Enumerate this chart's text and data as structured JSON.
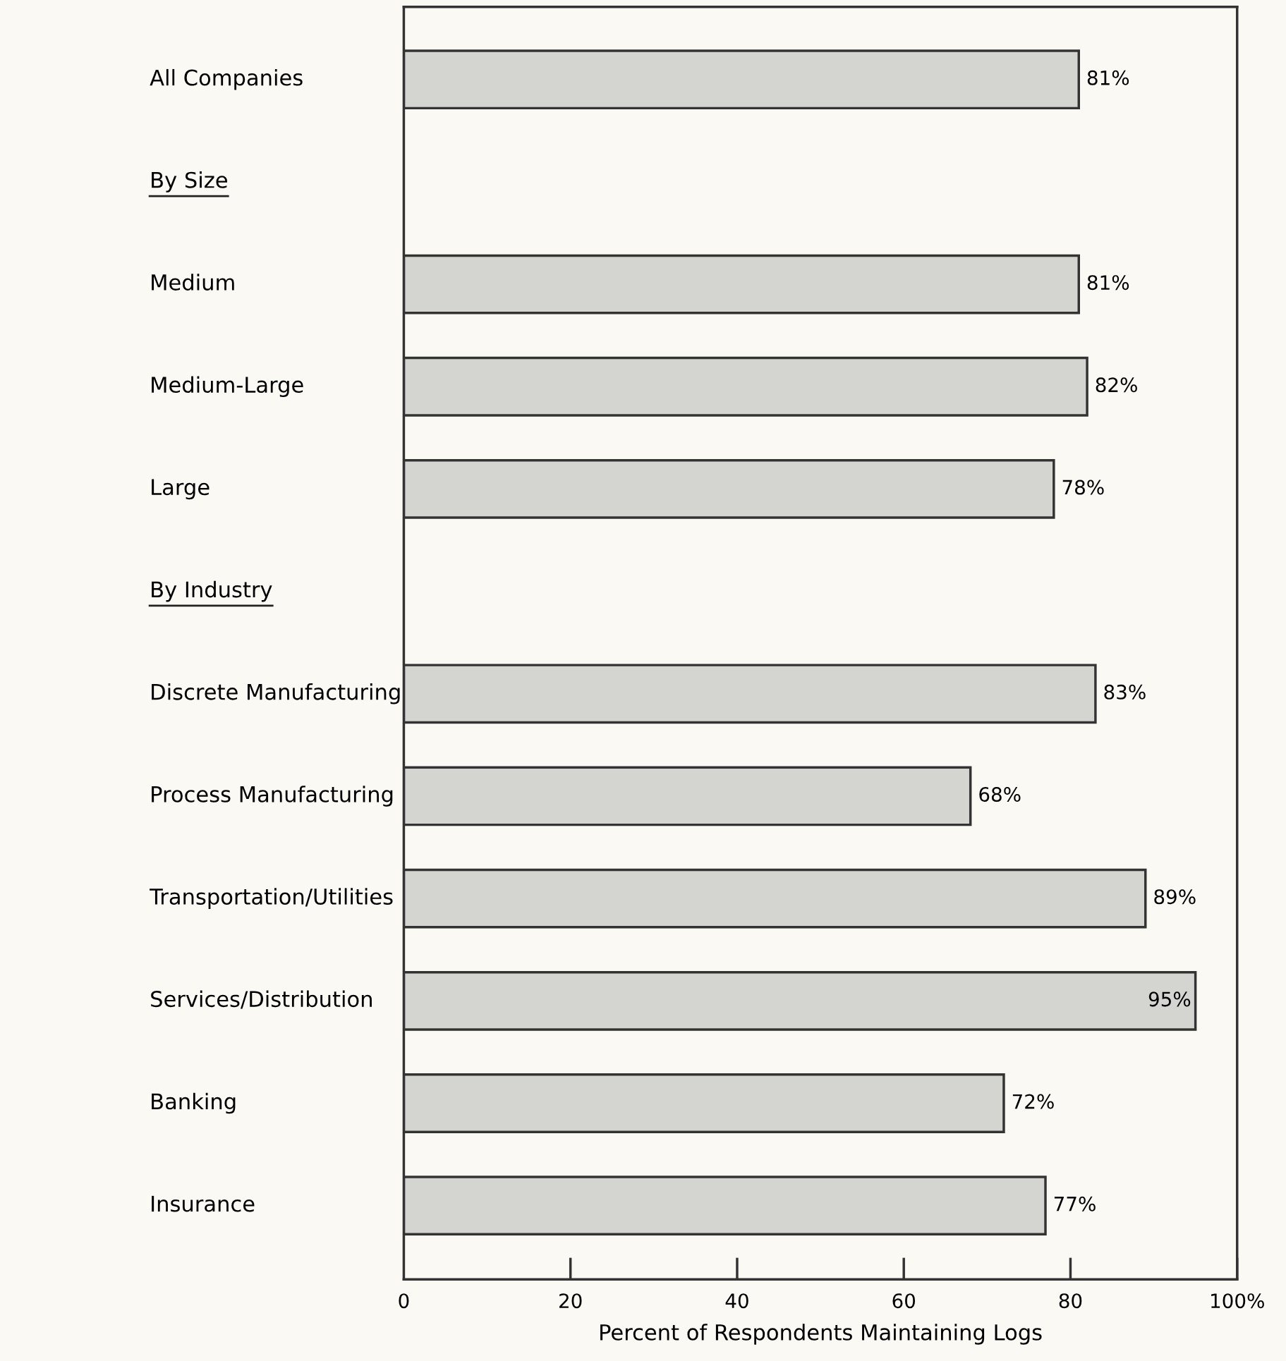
{
  "chart_data": {
    "type": "bar",
    "orientation": "horizontal",
    "xlabel": "Percent of Respondents Maintaining Logs",
    "categories": [
      "All Companies",
      "By Size",
      "Medium",
      "Medium-Large",
      "Large",
      "By Industry",
      "Discrete Manufacturing",
      "Process Manufacturing",
      "Transportation/Utilities",
      "Services/Distribution",
      "Banking",
      "Insurance"
    ],
    "values": [
      81,
      null,
      81,
      82,
      78,
      null,
      83,
      68,
      89,
      95,
      72,
      77
    ],
    "value_labels": [
      "81%",
      null,
      "81%",
      "82%",
      "78%",
      null,
      "83%",
      "68%",
      "89%",
      "95%",
      "72%",
      "77%"
    ],
    "color": "#d4d4d0",
    "xlim": [
      0,
      100
    ],
    "xticks": [
      0,
      20,
      40,
      60,
      80,
      {
        "value": 100,
        "label": "100%"
      }
    ],
    "grid": false
  }
}
